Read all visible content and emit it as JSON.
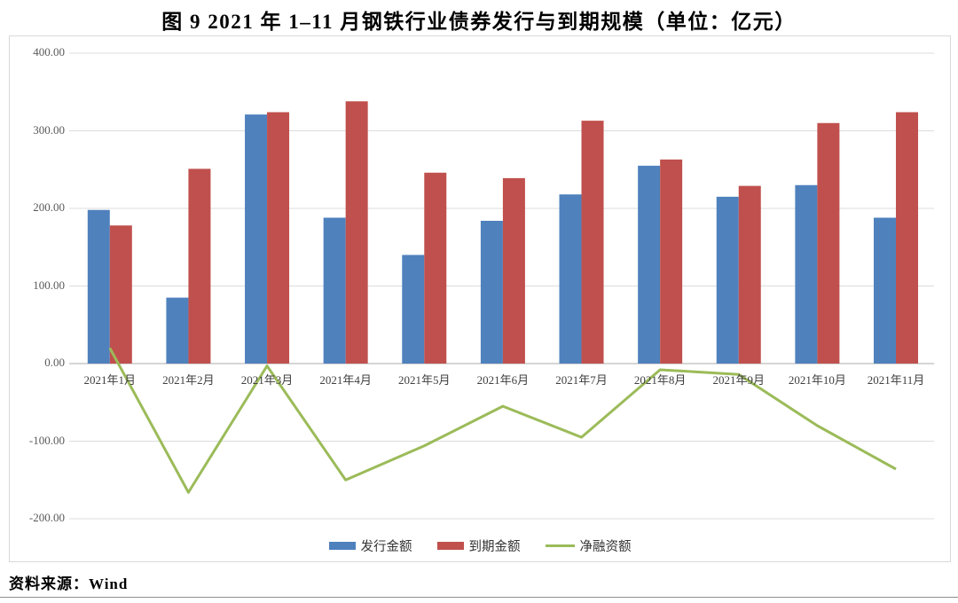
{
  "title": "图 9  2021 年 1–11 月钢铁行业债券发行与到期规模（单位：亿元）",
  "source": "资料来源：Wind",
  "chart_data": {
    "type": "bar",
    "subtype": "grouped-bars-with-line",
    "title": "图 9  2021 年 1–11 月钢铁行业债券发行与到期规模（单位：亿元）",
    "unit": "亿元",
    "xlabel": "",
    "ylabel": "",
    "ylim": [
      -200,
      400
    ],
    "grid": true,
    "legend_position": "bottom",
    "categories": [
      "2021年1月",
      "2021年2月",
      "2021年3月",
      "2021年4月",
      "2021年5月",
      "2021年6月",
      "2021年7月",
      "2021年8月",
      "2021年9月",
      "2021年10月",
      "2021年11月"
    ],
    "series": [
      {
        "key": "issuance",
        "name": "发行金额",
        "type": "bar",
        "color": "#4F81BD",
        "values": [
          198,
          85,
          321,
          188,
          140,
          184,
          218,
          255,
          215,
          230,
          188
        ]
      },
      {
        "key": "maturity",
        "name": "到期金额",
        "type": "bar",
        "color": "#C0504D",
        "values": [
          178,
          251,
          324,
          338,
          246,
          239,
          313,
          263,
          229,
          310,
          324
        ]
      },
      {
        "key": "net",
        "name": "净融资额",
        "type": "line",
        "color": "#9BBB59",
        "values": [
          20,
          -166,
          -3,
          -150,
          -106,
          -55,
          -95,
          -8,
          -14,
          -80,
          -136
        ]
      }
    ],
    "y_ticks": [
      {
        "value": 400,
        "label": "400.00"
      },
      {
        "value": 300,
        "label": "300.00"
      },
      {
        "value": 200,
        "label": "200.00"
      },
      {
        "value": 100,
        "label": "100.00"
      },
      {
        "value": 0,
        "label": "0.00"
      },
      {
        "value": -100,
        "label": "-100.00"
      },
      {
        "value": -200,
        "label": "-200.00"
      }
    ],
    "colors": {
      "grid": "#dcdcdc",
      "axis": "#ababab",
      "border": "#d9d9d9",
      "tick_text": "#595959",
      "category_text": "#404040"
    }
  }
}
